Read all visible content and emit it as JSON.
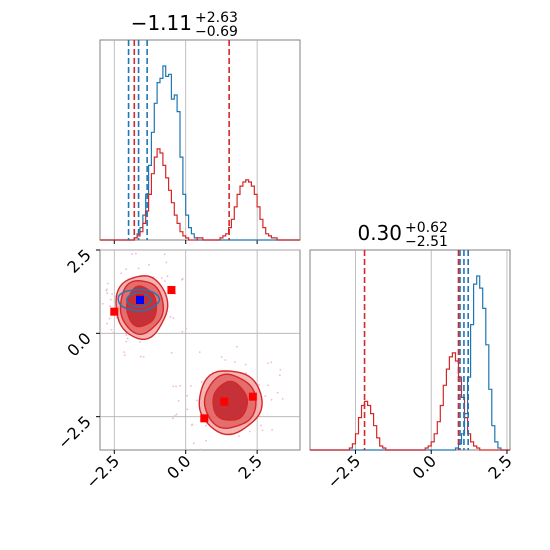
{
  "chart_data": [
    {
      "panel": "marginal-x",
      "type": "histogram",
      "title": {
        "main": "−1.11",
        "sup": "+2.63",
        "sub": "−0.69"
      },
      "xlim": [
        -3.0,
        4.0
      ],
      "grid": true,
      "series": [
        {
          "color": "#1f77b4",
          "bins_start": -3.0,
          "bin_width": 0.1,
          "counts": [
            0,
            0,
            0,
            0,
            0,
            0,
            0,
            0,
            0,
            0,
            0,
            0,
            1,
            3,
            6,
            12,
            22,
            36,
            52,
            66,
            76,
            78,
            84,
            79,
            80,
            68,
            70,
            62,
            40,
            22,
            12,
            6,
            3,
            1,
            0,
            0,
            0,
            0,
            0,
            0,
            0,
            0,
            0,
            0,
            0,
            0,
            0,
            0,
            0,
            0,
            0,
            0,
            0,
            0,
            0,
            0,
            0,
            0,
            0,
            0,
            0,
            0,
            0,
            0,
            0,
            0,
            0,
            0,
            0,
            0
          ],
          "quantile_lines": [
            -2.0,
            -1.65,
            -1.35
          ]
        },
        {
          "color": "#d62728",
          "bins_start": -3.0,
          "bin_width": 0.1,
          "counts": [
            0,
            0,
            0,
            0,
            0,
            0,
            0,
            0,
            0,
            0,
            0,
            0,
            1,
            2,
            4,
            8,
            14,
            22,
            32,
            40,
            44,
            42,
            36,
            30,
            24,
            18,
            12,
            8,
            4,
            2,
            1,
            0,
            0,
            0,
            1,
            1,
            0,
            0,
            0,
            0,
            0,
            0,
            1,
            2,
            3,
            6,
            10,
            16,
            22,
            26,
            28,
            29,
            28,
            26,
            22,
            16,
            10,
            6,
            3,
            2,
            1,
            1,
            0,
            0,
            0,
            0,
            0,
            0,
            0,
            0
          ],
          "quantile_lines": [
            -1.8,
            1.52
          ]
        }
      ]
    },
    {
      "panel": "joint",
      "type": "scatter",
      "xlim": [
        -3.0,
        4.0
      ],
      "ylim": [
        -3.5,
        2.5
      ],
      "xticks": [
        "−2.5",
        "0.0",
        "2.5"
      ],
      "yticks": [
        "2.5",
        "0.0",
        "−2.5"
      ],
      "xtick_values": [
        -2.5,
        0.0,
        2.5
      ],
      "ytick_values": [
        2.5,
        0.0,
        -2.5
      ],
      "grid": true,
      "blue_markers": [
        [
          -1.6,
          1.0
        ]
      ],
      "red_markers": [
        [
          -2.5,
          0.65
        ],
        [
          -1.6,
          1.05
        ],
        [
          -0.5,
          1.3
        ],
        [
          1.35,
          -2.05
        ],
        [
          2.35,
          -1.9
        ],
        [
          0.65,
          -2.55
        ]
      ],
      "red_contours": [
        {
          "center": [
            -1.55,
            0.8
          ],
          "radii": [
            [
              0.9,
              0.95
            ],
            [
              0.75,
              0.8
            ],
            [
              0.52,
              0.6
            ]
          ]
        },
        {
          "center": [
            1.55,
            -2.05
          ],
          "radii": [
            [
              1.1,
              0.95
            ],
            [
              0.9,
              0.8
            ],
            [
              0.6,
              0.58
            ]
          ]
        }
      ],
      "blue_contours": [
        {
          "center": [
            -1.65,
            1.0
          ],
          "radii": [
            [
              0.72,
              0.32
            ],
            [
              0.42,
              0.2
            ]
          ]
        }
      ]
    },
    {
      "panel": "marginal-y",
      "type": "histogram",
      "title": {
        "main": "0.30",
        "sup": "+0.62",
        "sub": "−2.51"
      },
      "xlim": [
        -4.0,
        2.6
      ],
      "xticks": [
        "−2.5",
        "0.0",
        "2.5"
      ],
      "xtick_values": [
        -2.5,
        0.0,
        2.5
      ],
      "grid": true,
      "series": [
        {
          "color": "#1f77b4",
          "bins_start": -4.0,
          "bin_width": 0.1,
          "counts": [
            0,
            0,
            0,
            0,
            0,
            0,
            0,
            0,
            0,
            0,
            0,
            0,
            0,
            0,
            0,
            0,
            0,
            0,
            0,
            0,
            0,
            0,
            0,
            0,
            0,
            0,
            0,
            0,
            0,
            0,
            0,
            0,
            0,
            0,
            0,
            0,
            0,
            0,
            0,
            0,
            0,
            0,
            0,
            0,
            0,
            0,
            0,
            0,
            1,
            3,
            8,
            18,
            36,
            62,
            82,
            86,
            80,
            70,
            52,
            30,
            12,
            4,
            1,
            0,
            0,
            0
          ],
          "quantile_lines": [
            0.95,
            1.08,
            1.22
          ]
        },
        {
          "color": "#d62728",
          "bins_start": -4.0,
          "bin_width": 0.1,
          "counts": [
            0,
            0,
            0,
            0,
            0,
            0,
            0,
            0,
            0,
            0,
            0,
            0,
            0,
            1,
            3,
            8,
            16,
            22,
            24,
            22,
            18,
            12,
            6,
            2,
            1,
            0,
            0,
            0,
            0,
            0,
            0,
            0,
            0,
            0,
            0,
            0,
            0,
            0,
            1,
            2,
            4,
            8,
            14,
            22,
            32,
            40,
            46,
            48,
            44,
            36,
            26,
            16,
            8,
            4,
            2,
            1,
            0,
            0,
            0,
            0,
            0,
            0,
            0,
            0,
            0,
            0
          ],
          "quantile_lines": [
            -2.2,
            0.9
          ]
        }
      ]
    }
  ],
  "colors": {
    "blue": "#1f77b4",
    "red": "#d62728",
    "red_fill": "#f4a6a6",
    "red_mid": "#e06060",
    "red_core": "#c0272d",
    "grid": "#b0b0b0",
    "noise": "#f0b8d8"
  }
}
